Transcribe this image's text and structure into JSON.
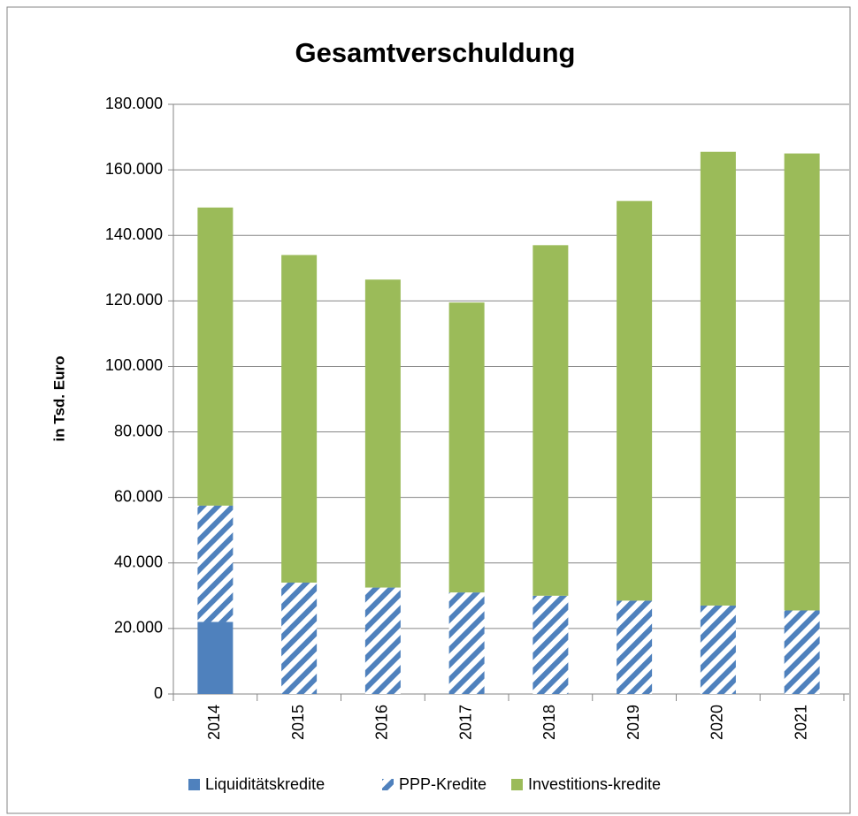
{
  "chart_data": {
    "type": "bar",
    "stacked": true,
    "title": "Gesamtverschuldung",
    "y_label": "in Tsd. Euro",
    "categories": [
      "2014",
      "2015",
      "2016",
      "2017",
      "2018",
      "2019",
      "2020",
      "2021"
    ],
    "series": [
      {
        "name": "Liquiditätskredite",
        "color": "#4f81bd",
        "values": [
          22000,
          0,
          0,
          0,
          0,
          0,
          0,
          0
        ]
      },
      {
        "name": "PPP-Kredite",
        "color": "#4f81bd",
        "hatch": true,
        "values": [
          35500,
          34000,
          32500,
          31000,
          30000,
          28500,
          27000,
          25500
        ]
      },
      {
        "name": "Investitions-kredite",
        "color": "#9bbb59",
        "values": [
          91000,
          100000,
          94000,
          88500,
          107000,
          122000,
          138500,
          139500
        ]
      }
    ],
    "ylim": [
      0,
      180000
    ],
    "yticks": [
      0,
      {
        "value": 20000,
        "label": "20.000"
      },
      {
        "value": 40000,
        "label": "40.000"
      },
      {
        "value": 60000,
        "label": "60.000"
      },
      {
        "value": 80000,
        "label": "80.000"
      },
      {
        "value": 100000,
        "label": "100.000"
      },
      {
        "value": 120000,
        "label": "120.000"
      },
      {
        "value": 140000,
        "label": "140.000"
      },
      {
        "value": 160000,
        "label": "160.000"
      },
      {
        "value": 180000,
        "label": "180.000"
      }
    ],
    "grid": true,
    "legend": "bottom"
  }
}
